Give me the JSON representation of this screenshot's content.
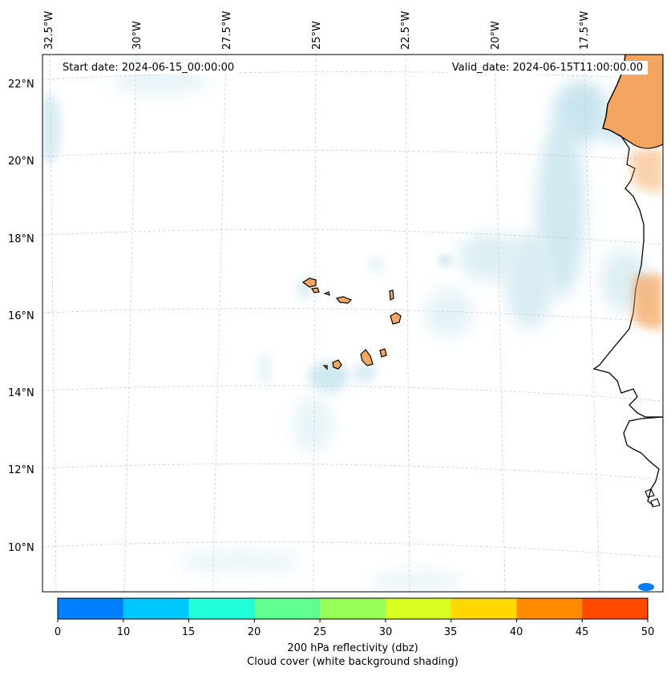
{
  "map": {
    "header": {
      "start_date": "Start date: 2024-06-15_00:00:00",
      "valid_date": "Valid_date: 2024-06-15T11:00:00.00"
    },
    "lon_labels": [
      "32.5°W",
      "30°W",
      "27.5°W",
      "25°W",
      "22.5°W",
      "20°W",
      "17.5°W"
    ],
    "lat_labels": [
      "22°N",
      "20°N",
      "18°N",
      "16°N",
      "14°N",
      "12°N",
      "10°N"
    ],
    "colorbar": {
      "ticks": [
        "0",
        "10",
        "15",
        "20",
        "25",
        "30",
        "35",
        "40",
        "45",
        "50"
      ],
      "colors": [
        "#0080ff",
        "#00c8ff",
        "#20ffd8",
        "#60ff90",
        "#98ff58",
        "#d8ff20",
        "#ffd800",
        "#ff8c00",
        "#ff4a00"
      ],
      "label_1": "200 hPa reflectivity (dbz)",
      "label_2": "Cloud cover (white background shading)"
    },
    "colors": {
      "land": "#f4a661",
      "cloud": "#a9d7e6",
      "coast": "#000000",
      "grid": "#c8c8c8"
    }
  }
}
